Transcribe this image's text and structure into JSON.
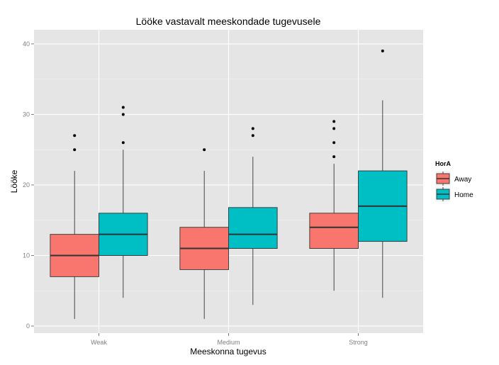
{
  "chart_data": {
    "type": "boxplot",
    "title": "Lööke vastavalt meeskondade tugevusele",
    "xlabel": "Meeskonna tugevus",
    "ylabel": "Lööke",
    "categories": [
      "Weak",
      "Medium",
      "Strong"
    ],
    "ylim": [
      -1,
      42
    ],
    "yticks": [
      0,
      10,
      20,
      30,
      40
    ],
    "grid": true,
    "legend": {
      "title": "HorA",
      "position": "right"
    },
    "series": [
      {
        "name": "Away",
        "color": "#F8766D",
        "boxes": [
          {
            "whisker_low": 1,
            "q1": 7,
            "median": 10,
            "q3": 13,
            "whisker_high": 22,
            "outliers": [
              25,
              27
            ]
          },
          {
            "whisker_low": 1,
            "q1": 8,
            "median": 11,
            "q3": 14,
            "whisker_high": 22,
            "outliers": [
              25
            ]
          },
          {
            "whisker_low": 5,
            "q1": 11,
            "median": 14,
            "q3": 16,
            "whisker_high": 23,
            "outliers": [
              24,
              26,
              28,
              29
            ]
          }
        ]
      },
      {
        "name": "Home",
        "color": "#00BFC4",
        "boxes": [
          {
            "whisker_low": 4,
            "q1": 10,
            "median": 13,
            "q3": 16,
            "whisker_high": 25,
            "outliers": [
              26,
              30,
              31
            ]
          },
          {
            "whisker_low": 3,
            "q1": 11,
            "median": 13,
            "q3": 16.8,
            "whisker_high": 24,
            "outliers": [
              27,
              28
            ]
          },
          {
            "whisker_low": 4,
            "q1": 12,
            "median": 17,
            "q3": 22,
            "whisker_high": 32,
            "outliers": [
              39
            ]
          }
        ]
      }
    ]
  }
}
